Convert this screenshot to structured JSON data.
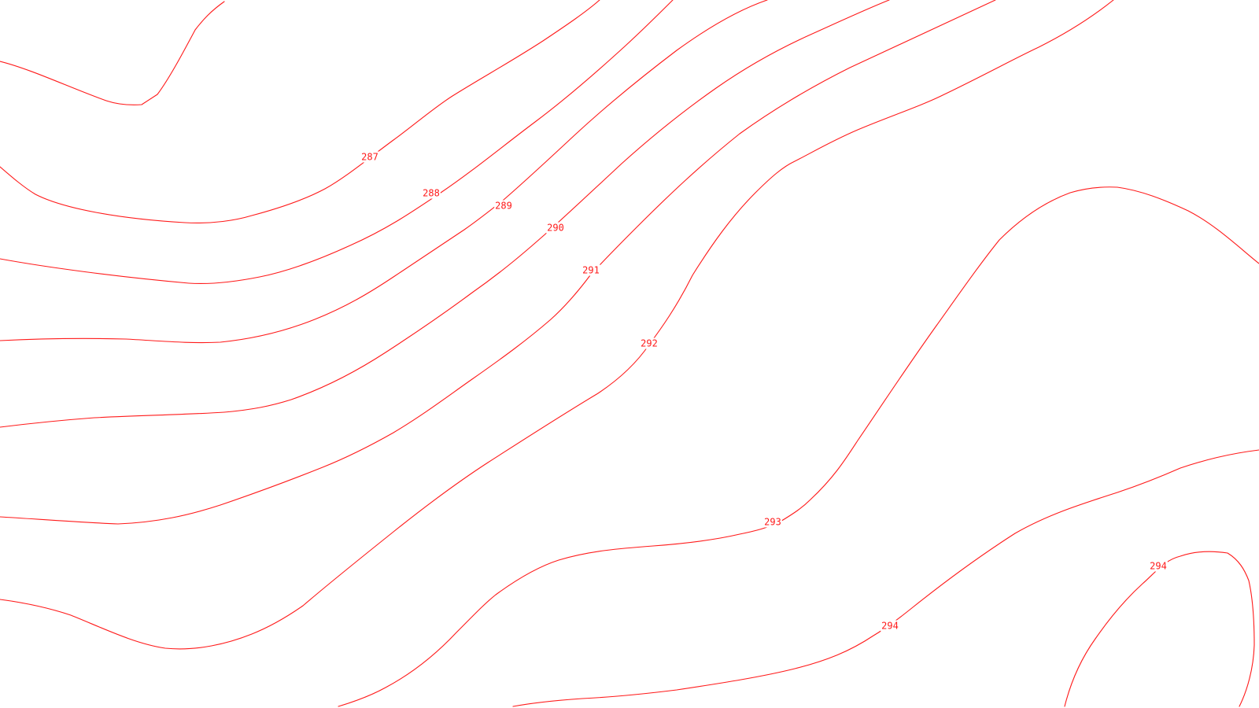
{
  "map": {
    "line_color": "#ff1a1a",
    "background_color": "#ffffff",
    "contours": [
      {
        "level": "287",
        "label": "287"
      },
      {
        "level": "288",
        "label": "288"
      },
      {
        "level": "289",
        "label": "289"
      },
      {
        "level": "290",
        "label": "290"
      },
      {
        "level": "291",
        "label": "291"
      },
      {
        "level": "292",
        "label": "292"
      },
      {
        "level": "293",
        "label": "293"
      },
      {
        "level": "294",
        "label": "294"
      },
      {
        "level": "294",
        "label": "294"
      }
    ]
  }
}
